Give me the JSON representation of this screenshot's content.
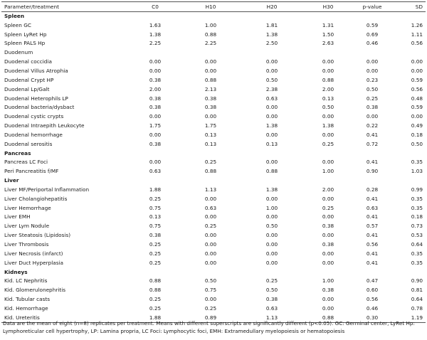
{
  "header": {
    "param": "Parameter/treatment",
    "c0": "C0",
    "h10": "H10",
    "h20": "H20",
    "h30": "H30",
    "p": "p-value",
    "sd": "SD"
  },
  "rows": [
    {
      "section": "Spleen"
    },
    {
      "name": "Spleen GC",
      "c0": "1.63",
      "h10": "1.00",
      "h20": "1.81",
      "h30": "1.31",
      "p": "0.59",
      "sd": "1.26"
    },
    {
      "name": "Spleen LyRet Hp",
      "c0": "1.38",
      "h10": "0.88",
      "h20": "1.38",
      "h30": "1.50",
      "p": "0.69",
      "sd": "1.11"
    },
    {
      "name": "Spleen PALS Hp",
      "c0": "2.25",
      "h10": "2.25",
      "h20": "2.50",
      "h30": "2.63",
      "p": "0.46",
      "sd": "0.56"
    },
    {
      "name": "Duodenum",
      "c0": "",
      "h10": "",
      "h20": "",
      "h30": "",
      "p": "",
      "sd": ""
    },
    {
      "name": "Duodenal coccidia",
      "c0": "0.00",
      "h10": "0.00",
      "h20": "0.00",
      "h30": "0.00",
      "p": "0.00",
      "sd": "0.00"
    },
    {
      "name": "Duodenal Villus Atrophia",
      "c0": "0.00",
      "h10": "0.00",
      "h20": "0.00",
      "h30": "0.00",
      "p": "0.00",
      "sd": "0.00"
    },
    {
      "name": "Duodenal Crypt HP",
      "c0": "0.38",
      "h10": "0.88",
      "h20": "0.50",
      "h30": "0.88",
      "p": "0.23",
      "sd": "0.59"
    },
    {
      "name": "Duodenal Lp/Galt",
      "c0": "2.00",
      "h10": "2.13",
      "h20": "2.38",
      "h30": "2.00",
      "p": "0.50",
      "sd": "0.56"
    },
    {
      "name": "Duodenal Heterophils LP",
      "c0": "0.38",
      "h10": "0.38",
      "h20": "0.63",
      "h30": "0.13",
      "p": "0.25",
      "sd": "0.48"
    },
    {
      "name": "Duodenal bacteria/dysbact",
      "c0": "0.38",
      "h10": "0.38",
      "h20": "0.00",
      "h30": "0.50",
      "p": "0.38",
      "sd": "0.59"
    },
    {
      "name": "Duodenal cystic crypts",
      "c0": "0.00",
      "h10": "0.00",
      "h20": "0.00",
      "h30": "0.00",
      "p": "0.00",
      "sd": "0.00"
    },
    {
      "name": "Duodenal Intraepith Leukocyte",
      "c0": "1.75",
      "h10": "1.75",
      "h20": "1.38",
      "h30": "1.38",
      "p": "0.22",
      "sd": "0.49"
    },
    {
      "name": "Duodenal hemorrhage",
      "c0": "0.00",
      "h10": "0.13",
      "h20": "0.00",
      "h30": "0.00",
      "p": "0.41",
      "sd": "0.18"
    },
    {
      "name": "Duodenal serositis",
      "c0": "0.38",
      "h10": "0.13",
      "h20": "0.13",
      "h30": "0.25",
      "p": "0.72",
      "sd": "0.50"
    },
    {
      "section": "Pancreas"
    },
    {
      "name": "Pancreas LC Foci",
      "c0": "0.00",
      "h10": "0.25",
      "h20": "0.00",
      "h30": "0.00",
      "p": "0.41",
      "sd": "0.35"
    },
    {
      "name": "Peri Pancreatitis f/MF",
      "c0": "0.63",
      "h10": "0.88",
      "h20": "0.88",
      "h30": "1.00",
      "p": "0.90",
      "sd": "1.03"
    },
    {
      "section": "Liver"
    },
    {
      "name": "Liver MF/Periportal Inflammation",
      "c0": "1.88",
      "h10": "1.13",
      "h20": "1.38",
      "h30": "2.00",
      "p": "0.28",
      "sd": "0.99"
    },
    {
      "name": "Liver Cholangiohepatitis",
      "c0": "0.25",
      "h10": "0.00",
      "h20": "0.00",
      "h30": "0.00",
      "p": "0.41",
      "sd": "0.35"
    },
    {
      "name": "Liver Hemorrhage",
      "c0": "0.75",
      "h10": "0.63",
      "h20": "1.00",
      "h30": "0.25",
      "p": "0.63",
      "sd": "0.35"
    },
    {
      "name": "Liver EMH",
      "c0": "0.13",
      "h10": "0.00",
      "h20": "0.00",
      "h30": "0.00",
      "p": "0.41",
      "sd": "0.18"
    },
    {
      "name": "Liver Lym Nodule",
      "c0": "0.75",
      "h10": "0.25",
      "h20": "0.50",
      "h30": "0.38",
      "p": "0.57",
      "sd": "0.73"
    },
    {
      "name": "Liver Steatosis (Lipidosis)",
      "c0": "0.38",
      "h10": "0.00",
      "h20": "0.00",
      "h30": "0.00",
      "p": "0.41",
      "sd": "0.53"
    },
    {
      "name": "Liver Thrombosis",
      "c0": "0.25",
      "h10": "0.00",
      "h20": "0.00",
      "h30": "0.38",
      "p": "0.56",
      "sd": "0.64"
    },
    {
      "name": "Liver Necrosis (infarct)",
      "c0": "0.25",
      "h10": "0.00",
      "h20": "0.00",
      "h30": "0.00",
      "p": "0.41",
      "sd": "0.35"
    },
    {
      "name": "Liver Duct Hyperplasia",
      "c0": "0.25",
      "h10": "0.00",
      "h20": "0.00",
      "h30": "0.00",
      "p": "0.41",
      "sd": "0.35"
    },
    {
      "section": "Kidneys"
    },
    {
      "name": "Kid. LC Nephritis",
      "c0": "0.88",
      "h10": "0.50",
      "h20": "0.25",
      "h30": "1.00",
      "p": "0.47",
      "sd": "0.90"
    },
    {
      "name": "Kid. Glomerulonephritis",
      "c0": "0.88",
      "h10": "0.75",
      "h20": "0.50",
      "h30": "0.38",
      "p": "0.60",
      "sd": "0.81"
    },
    {
      "name": "Kid. Tubular casts",
      "c0": "0.25",
      "h10": "0.00",
      "h20": "0.38",
      "h30": "0.00",
      "p": "0.56",
      "sd": "0.64"
    },
    {
      "name": "Kid. Hemorrhage",
      "c0": "0.25",
      "h10": "0.25",
      "h20": "0.63",
      "h30": "0.00",
      "p": "0.46",
      "sd": "0.78"
    },
    {
      "name": "Kid. Ureteritis",
      "c0": "1.88",
      "h10": "0.89",
      "h20": "1.13",
      "h30": "0.88",
      "p": "0.30",
      "sd": "1.19"
    }
  ],
  "footnote": "Data are the mean of eight (n=8) replicates per treatment. Means with different superscripts are significantly different (p<0.05). GC: Germinal center, LyRet Hp: Lymphoreticular cell hypertrophy, LP: Lamina propria, LC Foci: Lymphocytic foci, EMH: Extramedullary myelopoiesis or hematopoiesis"
}
